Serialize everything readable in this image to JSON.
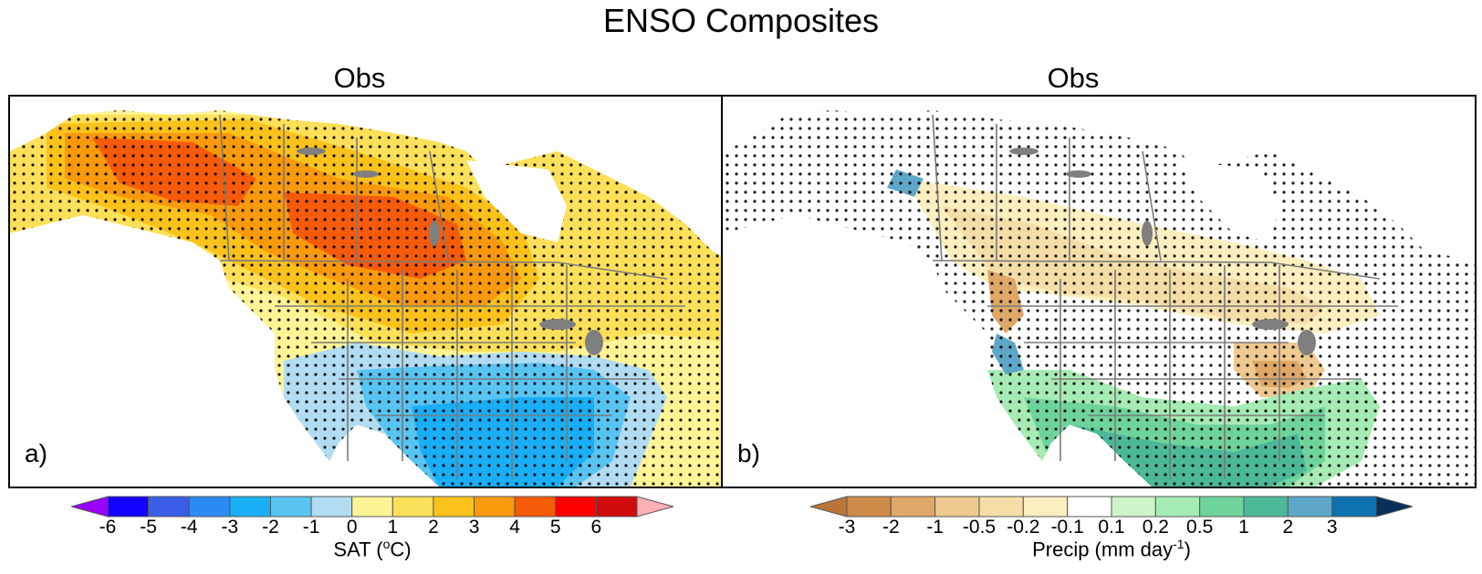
{
  "figure": {
    "title": "ENSO Composites"
  },
  "panels": [
    {
      "id": "a",
      "title": "Obs",
      "label": "a)",
      "colorbar": {
        "label_main": "SAT (",
        "label_sup": "o",
        "label_end": "C)",
        "ticks": [
          "-6",
          "-5",
          "-4",
          "-3",
          "-2",
          "-1",
          "0",
          "1",
          "2",
          "3",
          "4",
          "5",
          "6"
        ],
        "colors": [
          "#9900ff",
          "#1400ff",
          "#3a5ee8",
          "#2b8bf2",
          "#19aef5",
          "#58c4f2",
          "#b2dcf2",
          "#fef496",
          "#fde05a",
          "#fbc21b",
          "#f99a0c",
          "#f65b0a",
          "#fd0000",
          "#cf0b0b",
          "#ffb0b6"
        ]
      }
    },
    {
      "id": "b",
      "title": "Obs",
      "label": "b)",
      "colorbar": {
        "label_main": "Precip (mm day",
        "label_sup": "-1",
        "label_end": ")",
        "ticks": [
          "-3",
          "-2",
          "-1",
          "-0.5",
          "-0.2",
          "-0.1",
          "0.1",
          "0.2",
          "0.5",
          "1",
          "2",
          "3"
        ],
        "colors": [
          "#b97636",
          "#cd8a49",
          "#dfa768",
          "#efc98f",
          "#f5dda8",
          "#fbeebf",
          "#ffffff",
          "#cdf5c9",
          "#a7ebb4",
          "#6fd49c",
          "#4cb89a",
          "#5ea7c8",
          "#0e72b1",
          "#08305a"
        ]
      }
    }
  ],
  "map_layers": [
    "temperature-anomaly",
    "precipitation-anomaly",
    "significance-stippling",
    "state-province-borders"
  ]
}
